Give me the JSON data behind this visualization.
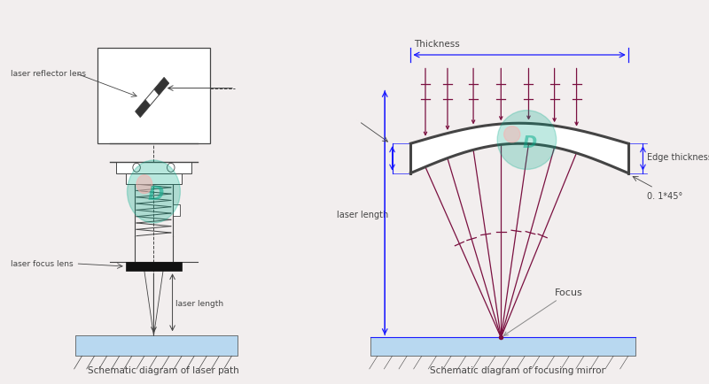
{
  "bg_color": "#f2eeee",
  "line_color_dark": "#444444",
  "line_color_blue": "#1a1aff",
  "line_color_red": "#7a1040",
  "line_color_gray": "#888888",
  "watermark_color": "#00aa88",
  "watermark_pink": "#ffaaaa",
  "caption_left": "Schematic diagram of laser path",
  "caption_right": "Schematic diagram of focusing mirror",
  "label_reflector": "laser reflector lens",
  "label_focus_lens": "laser focus lens",
  "label_laser_length_left": "laser length",
  "label_laser_length_right": "laser length",
  "label_thickness": "Thickness",
  "label_edge_thickness": "Edge thickness",
  "label_bevel": "0. 1*45°",
  "label_focus": "Focus"
}
